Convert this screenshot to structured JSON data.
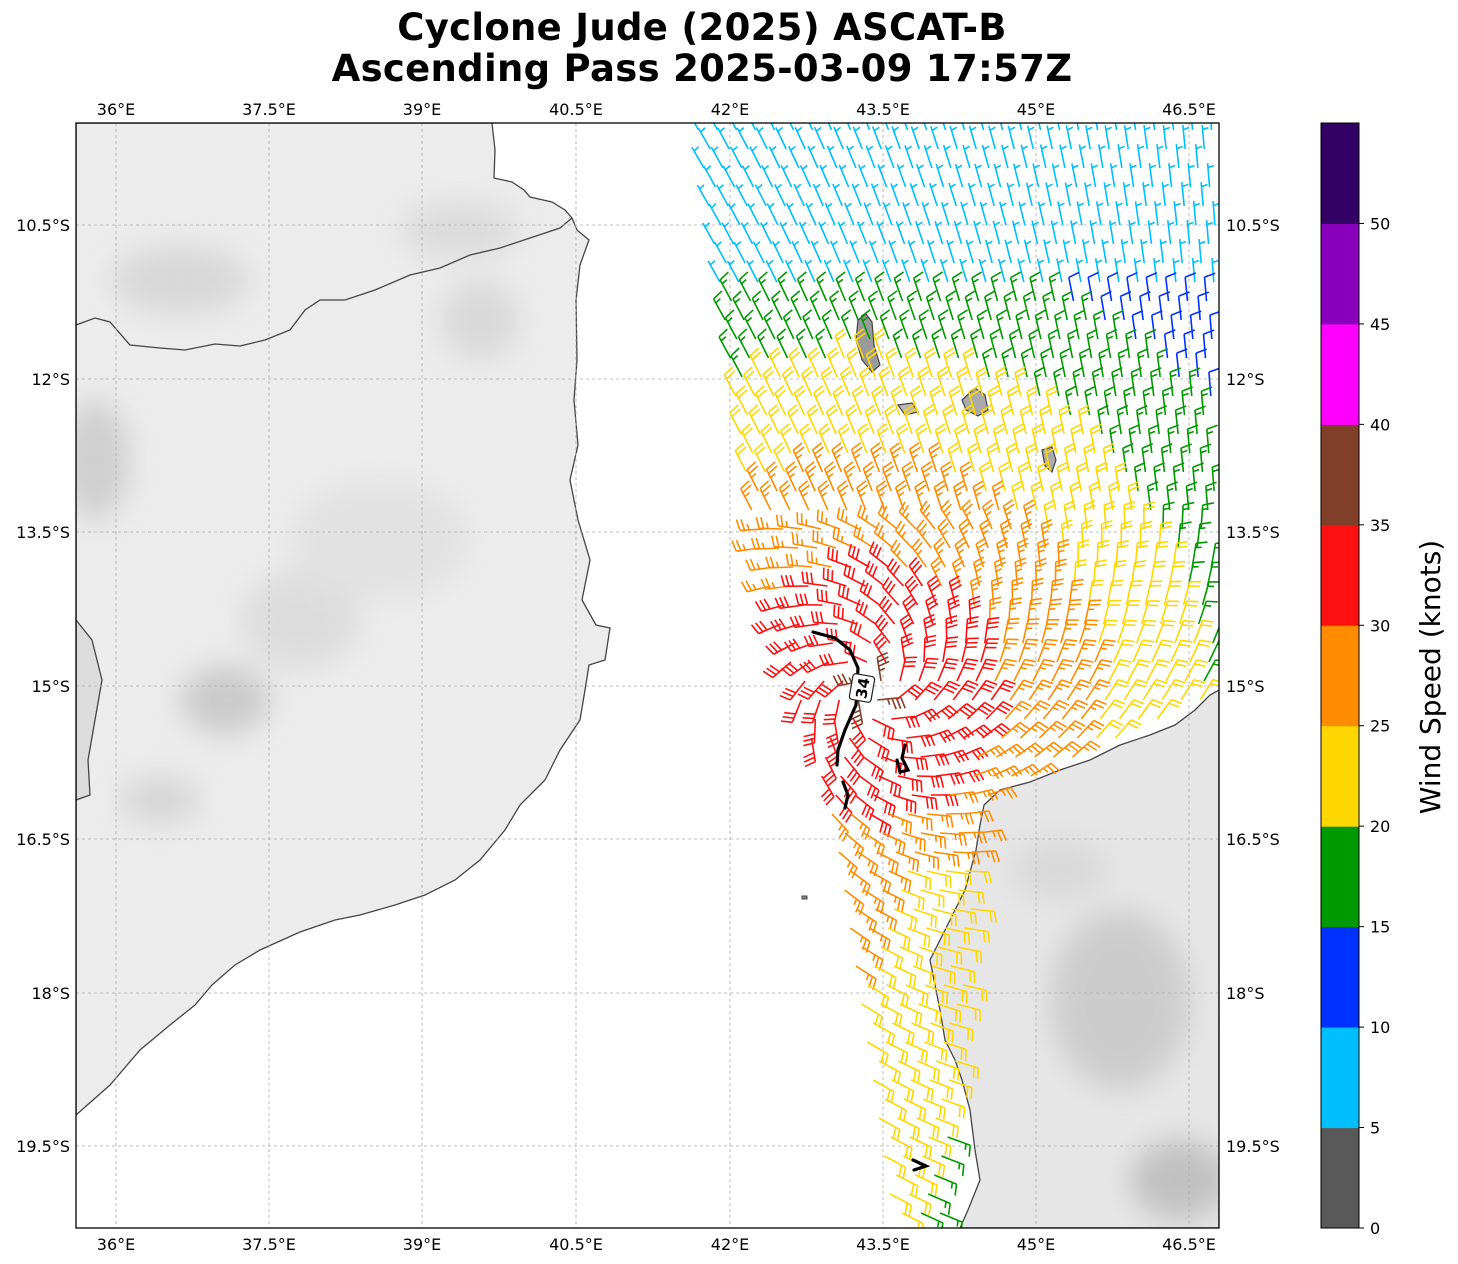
{
  "title": {
    "line1": "Cyclone Jude (2025) ASCAT-B",
    "line2": "Ascending Pass 2025-03-09 17:57Z"
  },
  "map": {
    "lon_ticks": [
      "36°E",
      "37.5°E",
      "39°E",
      "40.5°E",
      "42°E",
      "43.5°E",
      "45°E",
      "46.5°E"
    ],
    "lat_ticks": [
      "10.5°S",
      "12°S",
      "13.5°S",
      "15°S",
      "16.5°S",
      "18°S",
      "19.5°S"
    ],
    "contour_label": "34"
  },
  "colorbar": {
    "label": "Wind Speed (knots)",
    "tick_labels": [
      "0",
      "5",
      "10",
      "15",
      "20",
      "25",
      "30",
      "35",
      "40",
      "45",
      "50"
    ],
    "colors": [
      "#595959",
      "#00bfff",
      "#0032ff",
      "#009900",
      "#ffd700",
      "#ff8c00",
      "#ff1010",
      "#7f3f28",
      "#ff00ff",
      "#8800bb",
      "#330066"
    ]
  }
}
